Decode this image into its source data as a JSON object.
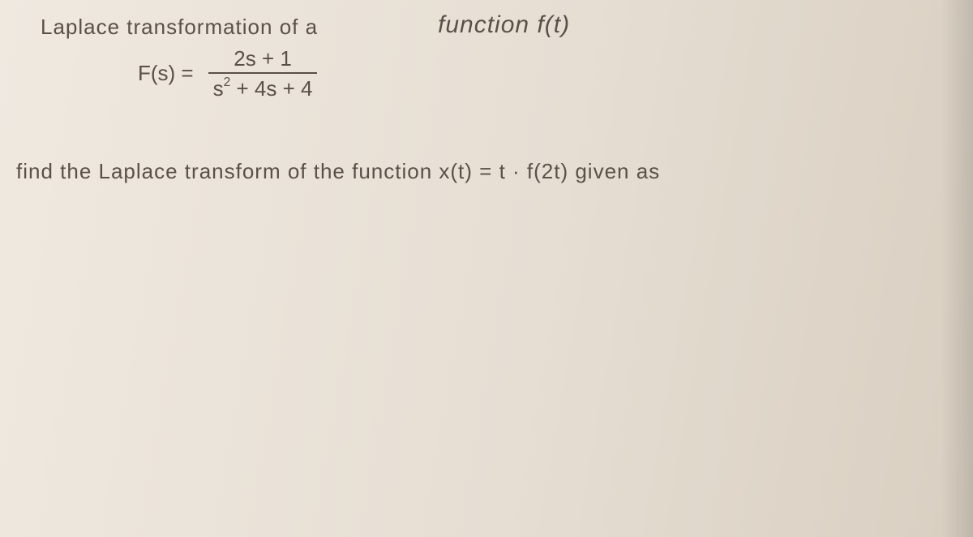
{
  "line1_a": "Laplace  transformation  of  a",
  "line1_b": "function  f(t)",
  "fs_label": "F(s) =",
  "fs_num": "2s + 1",
  "fs_den_pre": "s",
  "fs_den_exp": "2",
  "fs_den_post": " + 4s + 4",
  "line2_a": "find  the    Laplace    transform   of  the  function   x(t) = t · f(2t)   given as"
}
